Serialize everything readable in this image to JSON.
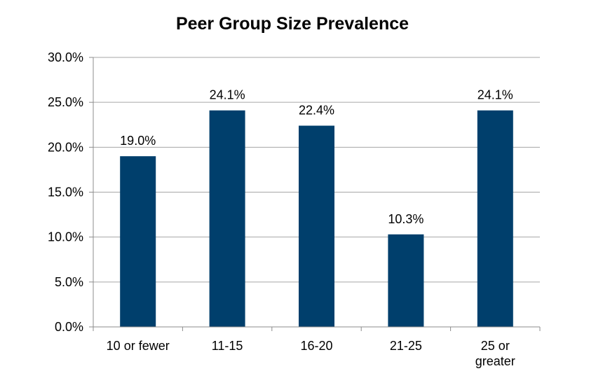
{
  "chart_data": {
    "type": "bar",
    "title": "Peer Group Size Prevalence",
    "xlabel": "",
    "ylabel": "",
    "categories": [
      "10 or fewer",
      "11-15",
      "16-20",
      "21-25",
      "25 or greater"
    ],
    "category_label_lines": [
      [
        "10 or fewer"
      ],
      [
        "11-15"
      ],
      [
        "16-20"
      ],
      [
        "21-25"
      ],
      [
        "25 or",
        "greater"
      ]
    ],
    "values": [
      19.0,
      24.1,
      22.4,
      10.3,
      24.1
    ],
    "data_labels": [
      "19.0%",
      "24.1%",
      "22.4%",
      "10.3%",
      "24.1%"
    ],
    "ylim": [
      0,
      30
    ],
    "y_ticks": [
      0,
      5,
      10,
      15,
      20,
      25,
      30
    ],
    "y_tick_labels": [
      "0.0%",
      "5.0%",
      "10.0%",
      "15.0%",
      "20.0%",
      "25.0%",
      "30.0%"
    ],
    "grid": true,
    "legend": "none",
    "bar_color": "#003f6c"
  }
}
